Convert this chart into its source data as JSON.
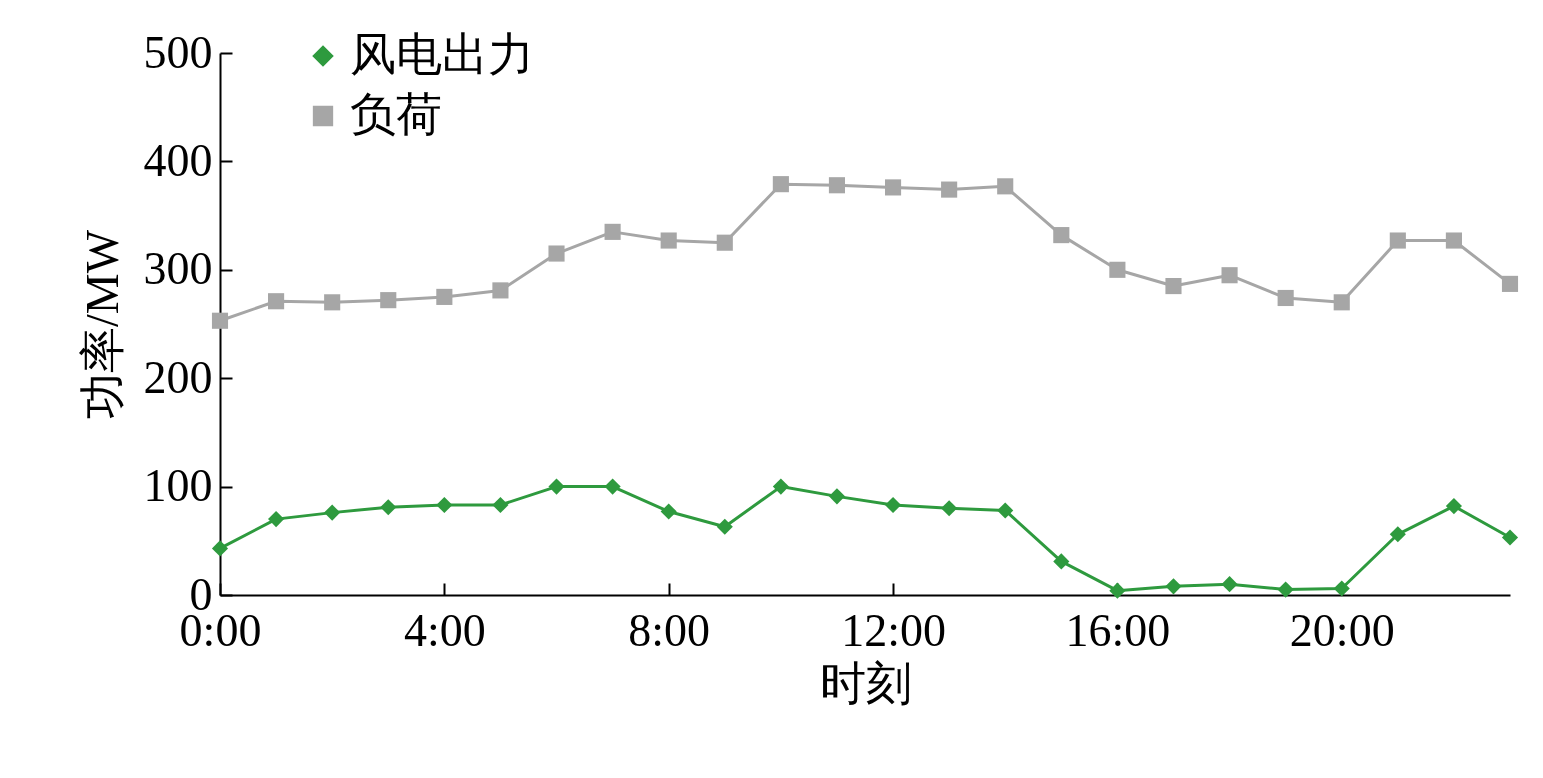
{
  "chart_data": {
    "type": "line",
    "xlabel": "时刻",
    "ylabel": "功率/MW",
    "x": [
      0,
      1,
      2,
      3,
      4,
      5,
      6,
      7,
      8,
      9,
      10,
      11,
      12,
      13,
      14,
      15,
      16,
      17,
      18,
      19,
      20,
      21,
      22,
      23
    ],
    "xlim": [
      0,
      23
    ],
    "xticks": [
      {
        "value": 0,
        "label": "0:00"
      },
      {
        "value": 4,
        "label": "4:00"
      },
      {
        "value": 8,
        "label": "8:00"
      },
      {
        "value": 12,
        "label": "12:00"
      },
      {
        "value": 16,
        "label": "16:00"
      },
      {
        "value": 20,
        "label": "20:00"
      }
    ],
    "ylim": [
      0,
      500
    ],
    "yticks": [
      0,
      100,
      200,
      300,
      400,
      500
    ],
    "grid": false,
    "legend": "top left",
    "line_style": "solid",
    "series": [
      {
        "name": "风电出力",
        "color": "#2e9a3e",
        "marker": "diamond",
        "values": [
          43,
          70,
          76,
          81,
          83,
          83,
          100,
          100,
          77,
          63,
          100,
          91,
          83,
          80,
          78,
          31,
          4,
          8,
          10,
          5,
          6,
          56,
          82,
          53
        ]
      },
      {
        "name": "负荷",
        "color": "#a6a6a6",
        "marker": "square",
        "values": [
          253,
          271,
          270,
          272,
          275,
          281,
          315,
          335,
          327,
          325,
          379,
          378,
          376,
          374,
          377,
          332,
          300,
          285,
          295,
          274,
          270,
          327,
          327,
          287
        ]
      }
    ]
  }
}
